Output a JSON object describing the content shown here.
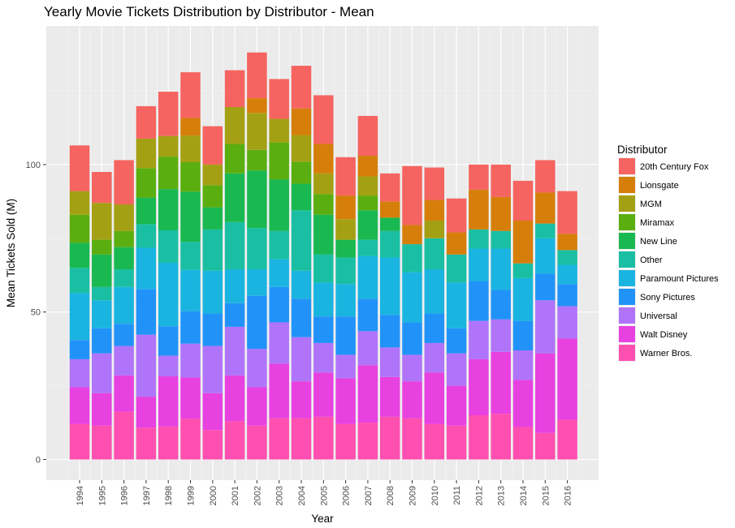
{
  "chart_data": {
    "type": "bar",
    "stacked": true,
    "title": "Yearly Movie Tickets Distribution by Distributor - Mean",
    "xlabel": "Year",
    "ylabel": "Mean Tickets Sold (M)",
    "ylim": [
      -7,
      147
    ],
    "yticks": [
      0,
      50,
      100
    ],
    "grid": true,
    "legend_title": "Distributor",
    "legend_position": "right",
    "categories": [
      "1994",
      "1995",
      "1996",
      "1997",
      "1998",
      "1999",
      "2000",
      "2001",
      "2002",
      "2003",
      "2004",
      "2005",
      "2006",
      "2007",
      "2008",
      "2009",
      "2010",
      "2011",
      "2012",
      "2013",
      "2014",
      "2015",
      "2016"
    ],
    "series": [
      {
        "name": "Warner Bros.",
        "color": "#FF4FB0",
        "values": [
          12.0,
          11.5,
          16.2,
          10.8,
          11.2,
          13.8,
          10.0,
          13.0,
          11.5,
          14.0,
          14.0,
          14.5,
          12.0,
          12.5,
          14.5,
          14.0,
          12.0,
          11.5,
          15.0,
          15.5,
          11.0,
          9.0,
          13.5
        ]
      },
      {
        "name": "Walt Disney",
        "color": "#E741E0",
        "values": [
          12.5,
          11.0,
          12.3,
          10.5,
          17.0,
          14.0,
          12.5,
          15.5,
          13.0,
          18.5,
          12.5,
          15.0,
          15.5,
          19.5,
          13.5,
          12.5,
          17.5,
          13.5,
          19.0,
          21.0,
          16.0,
          27.0,
          27.5
        ]
      },
      {
        "name": "Universal",
        "color": "#B074FA",
        "values": [
          9.5,
          13.5,
          10.0,
          21.0,
          7.0,
          11.5,
          16.0,
          16.5,
          13.0,
          14.0,
          15.0,
          10.0,
          8.0,
          11.5,
          10.0,
          9.0,
          10.0,
          11.0,
          13.0,
          11.0,
          10.0,
          18.0,
          11.0
        ]
      },
      {
        "name": "Sony Pictures",
        "color": "#2193F8",
        "values": [
          6.5,
          8.5,
          7.5,
          15.5,
          10.0,
          11.0,
          11.0,
          8.0,
          18.0,
          12.0,
          13.0,
          9.0,
          13.0,
          11.0,
          11.0,
          11.0,
          10.0,
          8.5,
          13.5,
          10.0,
          10.0,
          9.0,
          7.5
        ]
      },
      {
        "name": "Paramount Pictures",
        "color": "#1AB4E0",
        "values": [
          16.0,
          9.5,
          12.5,
          14.0,
          21.5,
          14.0,
          14.5,
          11.5,
          9.0,
          9.5,
          9.5,
          11.5,
          11.0,
          14.5,
          19.5,
          17.0,
          15.0,
          15.5,
          11.0,
          14.0,
          14.5,
          12.0,
          6.5
        ]
      },
      {
        "name": "Other",
        "color": "#1ABFA3",
        "values": [
          8.5,
          4.5,
          6.0,
          8.0,
          11.0,
          9.5,
          14.0,
          16.0,
          14.0,
          9.5,
          20.5,
          9.5,
          9.0,
          5.5,
          9.0,
          9.5,
          10.5,
          9.5,
          6.5,
          6.0,
          5.0,
          5.0,
          5.0
        ]
      },
      {
        "name": "New Line",
        "color": "#1AB850",
        "values": [
          8.5,
          11.0,
          7.5,
          9.0,
          14.0,
          17.0,
          7.5,
          16.5,
          19.5,
          17.5,
          9.0,
          13.5,
          6.0,
          10.0,
          4.5,
          0.0,
          0.0,
          0.0,
          0.0,
          0.0,
          0.0,
          0.0,
          0.0
        ]
      },
      {
        "name": "Miramax",
        "color": "#5BAE0F",
        "values": [
          9.5,
          5.0,
          5.5,
          10.0,
          11.0,
          10.0,
          7.5,
          10.0,
          7.0,
          12.5,
          7.5,
          7.0,
          0.0,
          5.0,
          0.0,
          0.0,
          0.0,
          0.0,
          0.0,
          0.0,
          0.0,
          0.0,
          0.0
        ]
      },
      {
        "name": "MGM",
        "color": "#A4A013",
        "values": [
          8.0,
          12.5,
          9.0,
          10.0,
          7.0,
          9.0,
          7.0,
          12.5,
          12.5,
          8.0,
          9.0,
          7.0,
          7.0,
          6.5,
          0.0,
          0.0,
          6.0,
          0.0,
          0.0,
          0.0,
          0.0,
          0.0,
          0.0
        ]
      },
      {
        "name": "Lionsgate",
        "color": "#D57F0A",
        "values": [
          0.0,
          0.0,
          0.0,
          0.0,
          0.0,
          6.0,
          0.0,
          0.0,
          5.0,
          0.0,
          9.0,
          10.0,
          8.0,
          7.0,
          5.5,
          6.5,
          7.0,
          7.5,
          13.5,
          11.5,
          14.5,
          10.5,
          5.5
        ]
      },
      {
        "name": "20th Century Fox",
        "color": "#F56460",
        "values": [
          15.5,
          10.5,
          15.0,
          11.0,
          15.0,
          15.5,
          13.0,
          12.5,
          15.5,
          13.5,
          14.5,
          16.5,
          13.0,
          13.5,
          9.5,
          20.0,
          11.0,
          11.5,
          8.5,
          11.0,
          13.5,
          11.0,
          14.5
        ]
      }
    ]
  }
}
